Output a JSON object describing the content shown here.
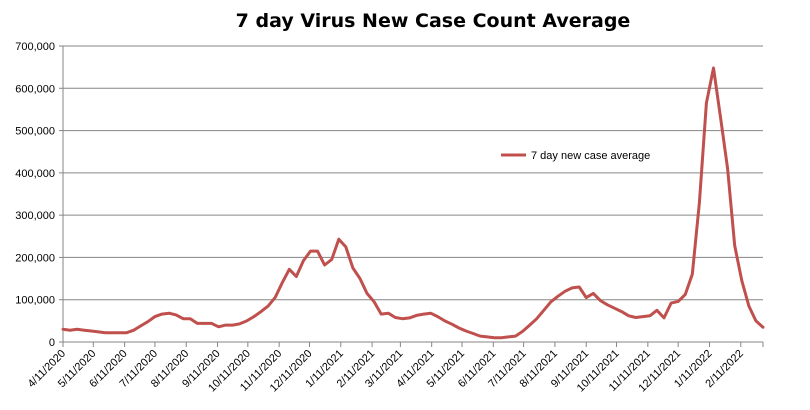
{
  "chart_data": {
    "type": "line",
    "title": "7 day Virus New Case Count Average",
    "xlabel": "",
    "ylabel": "",
    "ylim": [
      0,
      700000
    ],
    "yticks": [
      0,
      100000,
      200000,
      300000,
      400000,
      500000,
      600000,
      700000
    ],
    "ytick_labels": [
      "0",
      "100,000",
      "200,000",
      "300,000",
      "400,000",
      "500,000",
      "600,000",
      "700,000"
    ],
    "xlim": [
      "4/11/2020",
      "3/5/2022"
    ],
    "xtick_labels": [
      "4/11/2020",
      "5/11/2020",
      "6/11/2020",
      "7/11/2020",
      "8/11/2020",
      "9/11/2020",
      "10/11/2020",
      "11/11/2020",
      "12/11/2020",
      "1/11/2021",
      "2/11/2021",
      "3/11/2021",
      "4/11/2021",
      "5/11/2021",
      "6/11/2021",
      "7/11/2021",
      "8/11/2021",
      "9/11/2021",
      "10/11/2021",
      "11/11/2021",
      "12/11/2021",
      "1/11/2022",
      "2/11/2022"
    ],
    "grid": "horizontal",
    "legend_position": "right",
    "series": [
      {
        "name": "7 day new case average",
        "color": "#c0504d",
        "x": [
          "4/11/2020",
          "4/18/2020",
          "4/25/2020",
          "5/2/2020",
          "5/9/2020",
          "5/16/2020",
          "5/23/2020",
          "5/30/2020",
          "6/6/2020",
          "6/13/2020",
          "6/20/2020",
          "6/27/2020",
          "7/4/2020",
          "7/11/2020",
          "7/18/2020",
          "7/25/2020",
          "8/1/2020",
          "8/8/2020",
          "8/15/2020",
          "8/22/2020",
          "8/29/2020",
          "9/5/2020",
          "9/12/2020",
          "9/19/2020",
          "9/26/2020",
          "10/3/2020",
          "10/10/2020",
          "10/17/2020",
          "10/24/2020",
          "10/31/2020",
          "11/7/2020",
          "11/14/2020",
          "11/21/2020",
          "11/28/2020",
          "12/5/2020",
          "12/12/2020",
          "12/19/2020",
          "12/26/2020",
          "1/2/2021",
          "1/9/2021",
          "1/16/2021",
          "1/23/2021",
          "1/30/2021",
          "2/6/2021",
          "2/13/2021",
          "2/20/2021",
          "2/27/2021",
          "3/6/2021",
          "3/13/2021",
          "3/20/2021",
          "3/27/2021",
          "4/3/2021",
          "4/10/2021",
          "4/17/2021",
          "4/24/2021",
          "5/1/2021",
          "5/8/2021",
          "5/15/2021",
          "5/22/2021",
          "5/29/2021",
          "6/5/2021",
          "6/12/2021",
          "6/19/2021",
          "6/26/2021",
          "7/3/2021",
          "7/10/2021",
          "7/17/2021",
          "7/24/2021",
          "7/31/2021",
          "8/7/2021",
          "8/14/2021",
          "8/21/2021",
          "8/28/2021",
          "9/4/2021",
          "9/11/2021",
          "9/18/2021",
          "9/25/2021",
          "10/2/2021",
          "10/9/2021",
          "10/16/2021",
          "10/23/2021",
          "10/30/2021",
          "11/6/2021",
          "11/13/2021",
          "11/20/2021",
          "11/27/2021",
          "12/4/2021",
          "12/11/2021",
          "12/18/2021",
          "12/25/2021",
          "1/1/2022",
          "1/8/2022",
          "1/15/2022",
          "1/22/2022",
          "1/29/2022",
          "2/5/2022",
          "2/12/2022",
          "2/19/2022",
          "2/26/2022",
          "3/5/2022"
        ],
        "values": [
          30000,
          28000,
          30000,
          28000,
          26000,
          24000,
          22000,
          22000,
          22000,
          22000,
          28000,
          38000,
          48000,
          60000,
          66000,
          68000,
          64000,
          55000,
          55000,
          44000,
          44000,
          44000,
          36000,
          40000,
          40000,
          43000,
          50000,
          60000,
          72000,
          85000,
          105000,
          140000,
          172000,
          155000,
          192000,
          215000,
          215000,
          182000,
          195000,
          243000,
          225000,
          175000,
          150000,
          115000,
          95000,
          66000,
          68000,
          58000,
          55000,
          57000,
          63000,
          66000,
          68000,
          60000,
          50000,
          42000,
          33000,
          26000,
          20000,
          14000,
          12000,
          10000,
          10000,
          12000,
          14000,
          25000,
          40000,
          55000,
          75000,
          95000,
          108000,
          120000,
          128000,
          130000,
          105000,
          115000,
          98000,
          88000,
          80000,
          72000,
          62000,
          58000,
          60000,
          62000,
          75000,
          57000,
          92000,
          96000,
          112000,
          160000,
          330000,
          565000,
          648000,
          530000,
          410000,
          228000,
          145000,
          85000,
          50000,
          35000
        ]
      }
    ]
  }
}
